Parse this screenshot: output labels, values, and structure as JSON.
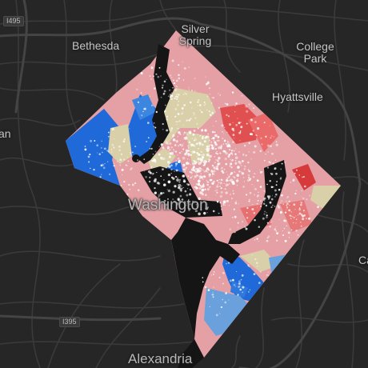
{
  "map": {
    "places": [
      {
        "name": "Bethesda"
      },
      {
        "name": "Silver Spring"
      },
      {
        "name": "College Park"
      },
      {
        "name": "Hyattsville"
      },
      {
        "name": "Washington"
      },
      {
        "name": "Alexandria"
      },
      {
        "name": "an"
      },
      {
        "name": "Cap"
      }
    ],
    "roads": [
      {
        "label": "I495"
      },
      {
        "label": "I395"
      }
    ],
    "colors": {
      "background": "#262626",
      "road": "#3c3c3c",
      "water": "#151515",
      "dark_blue": "#1f6ad8",
      "light_blue": "#6aa0dc",
      "pale_pink": "#e4a0a4",
      "red": "#e05050",
      "dark_red": "#d63a3a",
      "tan": "#d9cfa8",
      "dot": "#ffffff"
    }
  }
}
